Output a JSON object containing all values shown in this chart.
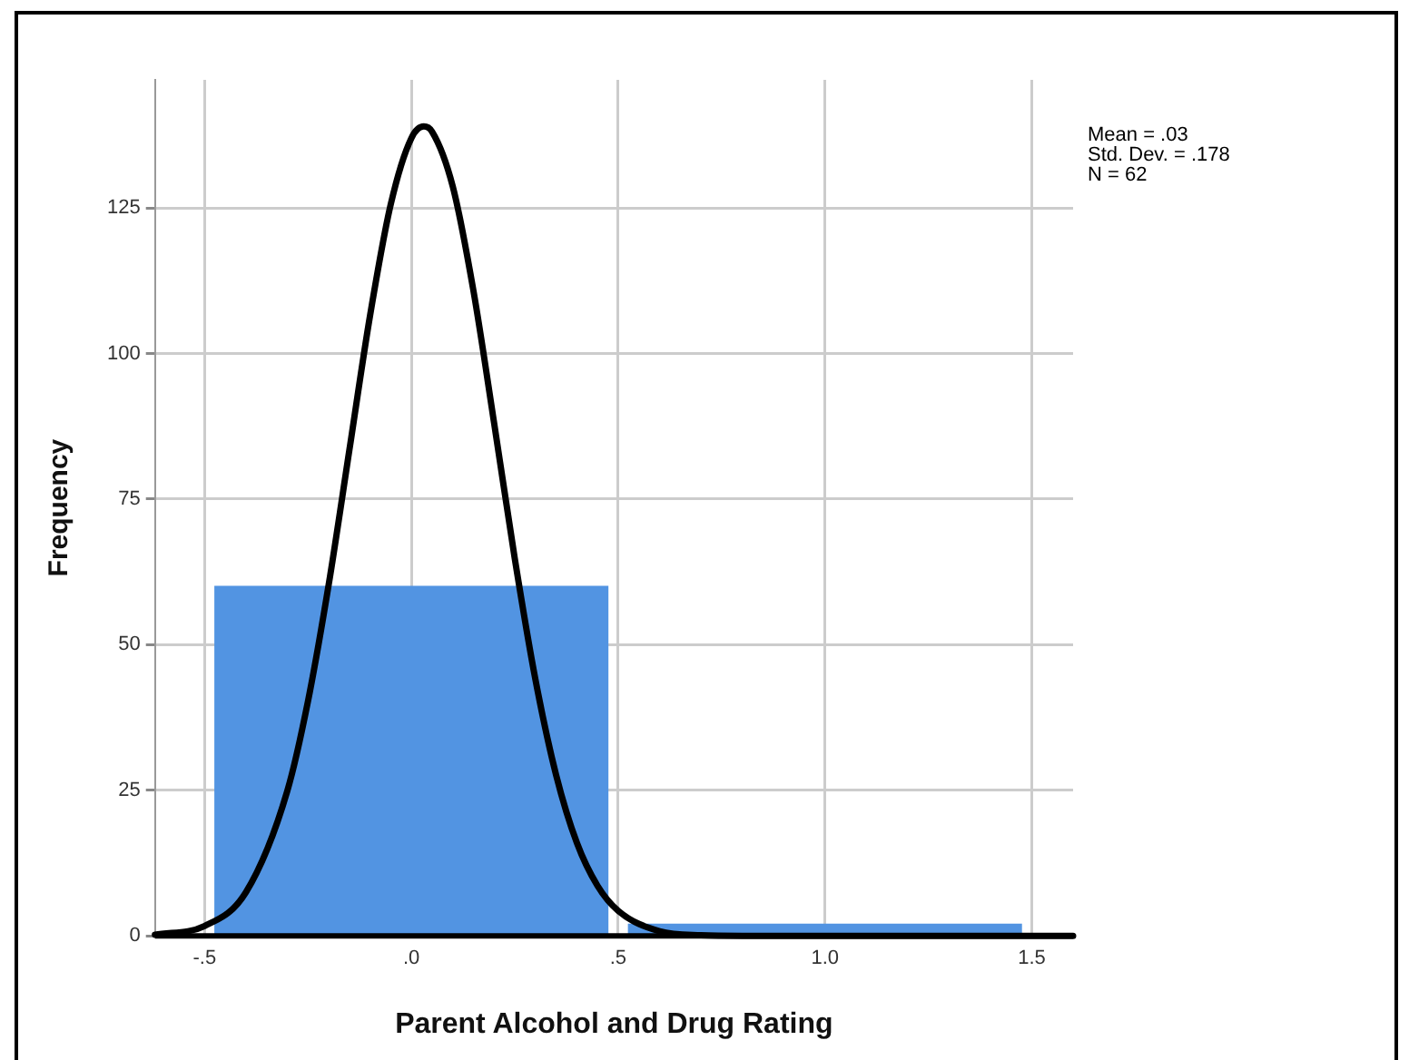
{
  "chart_data": {
    "type": "histogram",
    "xlabel": "Parent Alcohol and Drug Rating",
    "ylabel": "Frequency",
    "bins": [
      -0.5,
      0.5,
      1.5
    ],
    "values": [
      60,
      2
    ],
    "color": "#5294e2",
    "series": [
      {
        "type": "line",
        "color": "#000000",
        "x": [
          -0.62,
          -0.5,
          -0.4,
          -0.3,
          -0.25,
          -0.2,
          -0.15,
          -0.1,
          -0.05,
          0,
          0.03,
          0.05,
          0.1,
          0.15,
          0.2,
          0.25,
          0.3,
          0.35,
          0.4,
          0.45,
          0.5,
          0.6,
          0.7,
          0.8,
          1.0,
          1.2,
          1.4,
          1.6
        ],
        "values": [
          0.2,
          1.7,
          7.5,
          24.9,
          40.3,
          60.3,
          83.4,
          106.5,
          125.6,
          137,
          139,
          138.1,
          128.7,
          110.8,
          88.1,
          64.8,
          44,
          27.6,
          16,
          8.6,
          4.3,
          0.8,
          0.1,
          0,
          0,
          0,
          0,
          0
        ]
      }
    ],
    "marker": "none",
    "line_style": "solid",
    "xlim": [
      -0.62,
      1.6
    ],
    "ylim": [
      0,
      147
    ],
    "xticks": [
      {
        "value": -0.5,
        "label": "-.5"
      },
      {
        "value": 0,
        "label": ".0"
      },
      {
        "value": 0.5,
        "label": ".5"
      },
      {
        "value": 1,
        "label": "1.0"
      },
      1.5
    ],
    "yticks": [
      0,
      25,
      50,
      75,
      100,
      125
    ],
    "grid": true,
    "legend": false,
    "annotations": [
      "Mean = .03",
      "Std. Dev. = .178",
      "N = 62"
    ]
  }
}
